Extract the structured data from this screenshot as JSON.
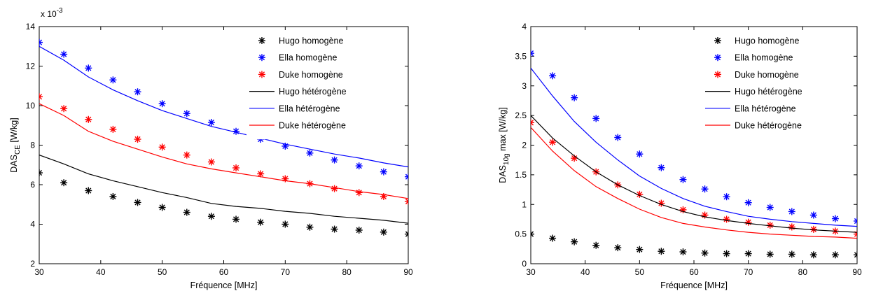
{
  "chart_data": [
    {
      "type": "line",
      "title": "",
      "xlabel": "Fréquence [MHz]",
      "ylabel_main": "DAS",
      "ylabel_sub": "CE",
      "ylabel_unit": " [W/kg]",
      "exponent_label": "x 10",
      "exponent_power": "-3",
      "xlim": [
        30,
        90
      ],
      "ylim": [
        2,
        14
      ],
      "xticks": [
        "30",
        "40",
        "50",
        "60",
        "70",
        "80",
        "90"
      ],
      "yticks": [
        "2",
        "4",
        "6",
        "8",
        "10",
        "12",
        "14"
      ],
      "grid": false,
      "legend": "top-right",
      "x": [
        30,
        34,
        38,
        42,
        46,
        50,
        54,
        58,
        62,
        66,
        70,
        74,
        78,
        82,
        86,
        90
      ],
      "series": [
        {
          "name": "Hugo homogène",
          "style": "marker",
          "color": "#000000",
          "values": [
            6.6,
            6.1,
            5.7,
            5.4,
            5.1,
            4.85,
            4.6,
            4.4,
            4.25,
            4.1,
            4.0,
            3.85,
            3.75,
            3.7,
            3.6,
            3.5
          ]
        },
        {
          "name": "Ella homogène",
          "style": "marker",
          "color": "#0000ff",
          "values": [
            13.2,
            12.6,
            11.9,
            11.3,
            10.7,
            10.1,
            9.6,
            9.15,
            8.7,
            8.3,
            7.95,
            7.6,
            7.25,
            6.95,
            6.65,
            6.4
          ]
        },
        {
          "name": "Duke homogène",
          "style": "marker",
          "color": "#ff0000",
          "values": [
            10.45,
            9.85,
            9.3,
            8.8,
            8.3,
            7.9,
            7.5,
            7.15,
            6.85,
            6.55,
            6.3,
            6.05,
            5.8,
            5.6,
            5.4,
            5.15
          ]
        },
        {
          "name": "Hugo hétérogène",
          "style": "line",
          "color": "#000000",
          "values": [
            7.5,
            7.05,
            6.55,
            6.2,
            5.9,
            5.6,
            5.35,
            5.05,
            4.9,
            4.8,
            4.65,
            4.55,
            4.4,
            4.3,
            4.2,
            4.05
          ]
        },
        {
          "name": "Ella hétérogène",
          "style": "line",
          "color": "#0000ff",
          "values": [
            13.0,
            12.3,
            11.45,
            10.8,
            10.25,
            9.75,
            9.35,
            8.95,
            8.65,
            8.35,
            8.05,
            7.8,
            7.55,
            7.35,
            7.1,
            6.9
          ]
        },
        {
          "name": "Duke hétérogène",
          "style": "line",
          "color": "#ff0000",
          "values": [
            10.1,
            9.5,
            8.7,
            8.2,
            7.8,
            7.4,
            7.05,
            6.8,
            6.6,
            6.4,
            6.2,
            6.05,
            5.85,
            5.65,
            5.5,
            5.3
          ]
        }
      ]
    },
    {
      "type": "line",
      "title": "",
      "xlabel": "Fréquence [MHz]",
      "ylabel_main": "DAS",
      "ylabel_sub": "10g",
      "ylabel_unit": " max [W/kg]",
      "xlim": [
        30,
        90
      ],
      "ylim": [
        0,
        4
      ],
      "xticks": [
        "30",
        "40",
        "50",
        "60",
        "70",
        "80",
        "90"
      ],
      "yticks": [
        "0",
        "0.5",
        "1",
        "1.5",
        "2",
        "2.5",
        "3",
        "3.5",
        "4"
      ],
      "grid": false,
      "legend": "top-right",
      "x": [
        30,
        34,
        38,
        42,
        46,
        50,
        54,
        58,
        62,
        66,
        70,
        74,
        78,
        82,
        86,
        90
      ],
      "series": [
        {
          "name": "Hugo homogène",
          "style": "marker",
          "color": "#000000",
          "values": [
            0.5,
            0.43,
            0.37,
            0.31,
            0.27,
            0.24,
            0.21,
            0.2,
            0.18,
            0.17,
            0.17,
            0.16,
            0.16,
            0.15,
            0.15,
            0.15
          ]
        },
        {
          "name": "Ella homogène",
          "style": "marker",
          "color": "#0000ff",
          "values": [
            3.55,
            3.17,
            2.8,
            2.45,
            2.13,
            1.85,
            1.62,
            1.42,
            1.26,
            1.13,
            1.03,
            0.95,
            0.88,
            0.82,
            0.76,
            0.72
          ]
        },
        {
          "name": "Duke homogène",
          "style": "marker",
          "color": "#ff0000",
          "values": [
            2.38,
            2.05,
            1.78,
            1.55,
            1.33,
            1.17,
            1.02,
            0.91,
            0.82,
            0.75,
            0.7,
            0.65,
            0.62,
            0.58,
            0.55,
            0.5
          ]
        },
        {
          "name": "Hugo hétérogène",
          "style": "line",
          "color": "#000000",
          "values": [
            2.5,
            2.12,
            1.82,
            1.55,
            1.33,
            1.15,
            1.0,
            0.88,
            0.79,
            0.73,
            0.68,
            0.64,
            0.6,
            0.57,
            0.55,
            0.53
          ]
        },
        {
          "name": "Ella hétérogène",
          "style": "line",
          "color": "#0000ff",
          "values": [
            3.3,
            2.83,
            2.4,
            2.05,
            1.75,
            1.48,
            1.27,
            1.1,
            0.97,
            0.88,
            0.8,
            0.75,
            0.71,
            0.68,
            0.65,
            0.63
          ]
        },
        {
          "name": "Duke hétérogène",
          "style": "line",
          "color": "#ff0000",
          "values": [
            2.3,
            1.9,
            1.57,
            1.3,
            1.1,
            0.92,
            0.78,
            0.68,
            0.62,
            0.57,
            0.53,
            0.5,
            0.48,
            0.46,
            0.45,
            0.43
          ]
        }
      ]
    }
  ]
}
